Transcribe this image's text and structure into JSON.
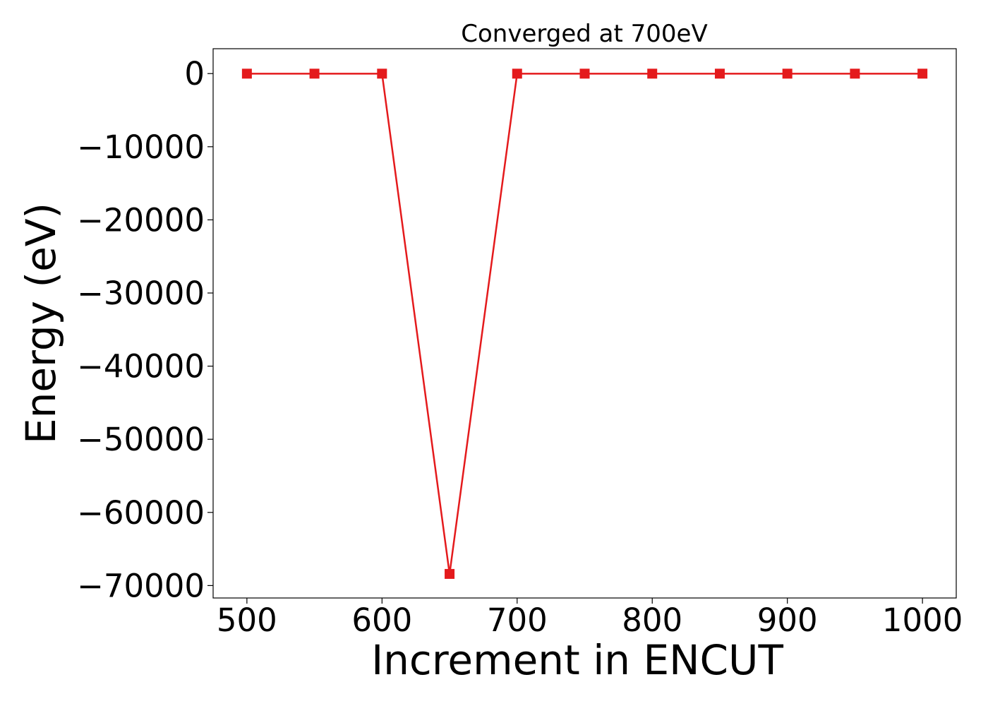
{
  "chart_data": {
    "type": "line",
    "title": "Converged at 700eV",
    "xlabel": "Increment in ENCUT",
    "ylabel": "Energy (eV)",
    "x": [
      500,
      550,
      600,
      650,
      700,
      750,
      800,
      850,
      900,
      950,
      1000
    ],
    "series": [
      {
        "values": [
          -10,
          -10,
          -10,
          -68410,
          -10,
          -10,
          -10,
          -10,
          -10,
          -10,
          -10
        ],
        "color": "#e41a1c",
        "marker": "square"
      }
    ],
    "xlim": [
      475,
      1025
    ],
    "ylim": [
      -71700,
      3400
    ],
    "xticks": [
      500,
      600,
      700,
      800,
      900,
      1000
    ],
    "xtick_labels": [
      "500",
      "600",
      "700",
      "800",
      "900",
      "1000"
    ],
    "yticks": [
      0,
      -10000,
      -20000,
      -30000,
      -40000,
      -50000,
      -60000,
      -70000
    ],
    "ytick_labels": [
      "0",
      "−10000",
      "−20000",
      "−30000",
      "−40000",
      "−50000",
      "−60000",
      "−70000"
    ],
    "grid": false,
    "legend": "none"
  }
}
